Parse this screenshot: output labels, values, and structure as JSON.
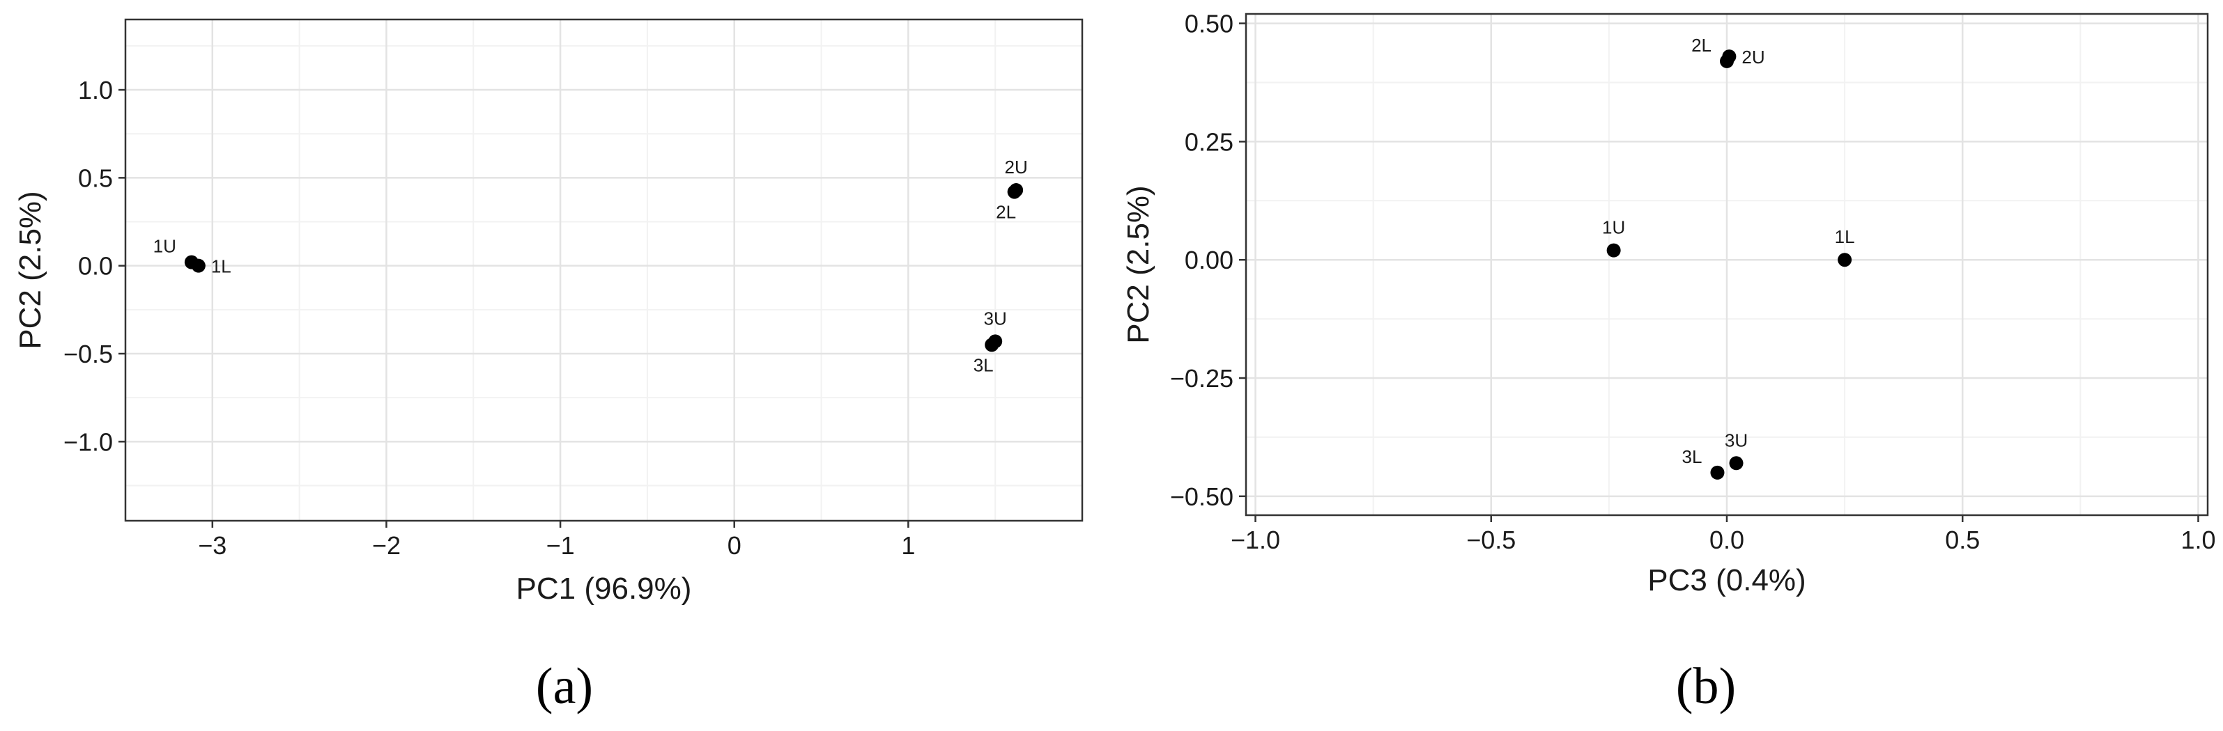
{
  "chart_data": [
    {
      "type": "scatter",
      "panel_label": "(a)",
      "xlabel": "PC1 (96.9%)",
      "ylabel": "PC2 (2.5%)",
      "xlim": [
        -3.5,
        2.0
      ],
      "ylim": [
        -1.45,
        1.4
      ],
      "xticks": [
        -3,
        -2,
        -1,
        0,
        1
      ],
      "xtick_labels": [
        "−3",
        "−2",
        "−1",
        "0",
        "1"
      ],
      "yticks": [
        -1.0,
        -0.5,
        0.0,
        0.5,
        1.0
      ],
      "ytick_labels": [
        "−1.0",
        "−0.5",
        "0.0",
        "0.5",
        "1.0"
      ],
      "grid": true,
      "points": [
        {
          "label": "1U",
          "x": -3.12,
          "y": 0.02,
          "label_pos": "upper-left"
        },
        {
          "label": "1L",
          "x": -3.08,
          "y": 0.0,
          "label_pos": "right"
        },
        {
          "label": "2U",
          "x": 1.62,
          "y": 0.43,
          "label_pos": "above"
        },
        {
          "label": "2L",
          "x": 1.61,
          "y": 0.42,
          "label_pos": "below"
        },
        {
          "label": "3U",
          "x": 1.5,
          "y": -0.43,
          "label_pos": "above"
        },
        {
          "label": "3L",
          "x": 1.48,
          "y": -0.45,
          "label_pos": "below"
        }
      ]
    },
    {
      "type": "scatter",
      "panel_label": "(b)",
      "xlabel": "PC3 (0.4%)",
      "ylabel": "PC2 (2.5%)",
      "xlim": [
        -1.02,
        1.02
      ],
      "ylim": [
        -0.54,
        0.52
      ],
      "xticks": [
        -1.0,
        -0.5,
        0.0,
        0.5,
        1.0
      ],
      "xtick_labels": [
        "−1.0",
        "−0.5",
        "0.0",
        "0.5",
        "1.0"
      ],
      "yticks": [
        -0.5,
        -0.25,
        0.0,
        0.25,
        0.5
      ],
      "ytick_labels": [
        "−0.50",
        "−0.25",
        "0.00",
        "0.25",
        "0.50"
      ],
      "grid": true,
      "points": [
        {
          "label": "2L",
          "x": 0.0,
          "y": 0.42,
          "label_pos": "upper-left"
        },
        {
          "label": "2U",
          "x": 0.005,
          "y": 0.43,
          "label_pos": "right"
        },
        {
          "label": "1U",
          "x": -0.24,
          "y": 0.02,
          "label_pos": "above"
        },
        {
          "label": "1L",
          "x": 0.25,
          "y": 0.0,
          "label_pos": "above"
        },
        {
          "label": "3L",
          "x": -0.02,
          "y": -0.45,
          "label_pos": "upper-left"
        },
        {
          "label": "3U",
          "x": 0.02,
          "y": -0.43,
          "label_pos": "above"
        }
      ]
    }
  ]
}
